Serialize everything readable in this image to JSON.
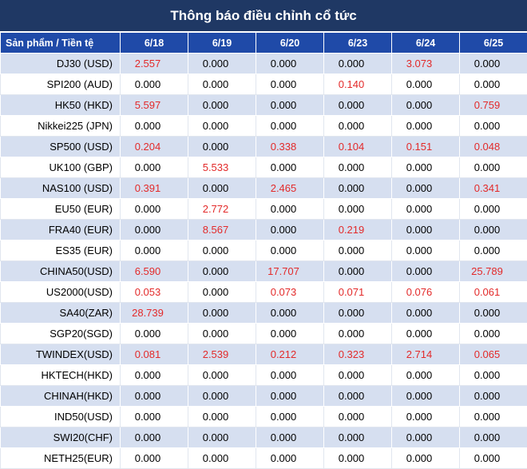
{
  "title": "Thông báo điều chỉnh cổ tức",
  "header": {
    "product_col": "Sản phẩm / Tiền tệ",
    "dates": [
      "6/18",
      "6/19",
      "6/20",
      "6/23",
      "6/24",
      "6/25"
    ]
  },
  "rows": [
    {
      "label": "DJ30 (USD)",
      "values": [
        "2.557",
        "0.000",
        "0.000",
        "0.000",
        "3.073",
        "0.000"
      ]
    },
    {
      "label": "SPI200 (AUD)",
      "values": [
        "0.000",
        "0.000",
        "0.000",
        "0.140",
        "0.000",
        "0.000"
      ]
    },
    {
      "label": "HK50 (HKD)",
      "values": [
        "5.597",
        "0.000",
        "0.000",
        "0.000",
        "0.000",
        "0.759"
      ]
    },
    {
      "label": "Nikkei225 (JPN)",
      "values": [
        "0.000",
        "0.000",
        "0.000",
        "0.000",
        "0.000",
        "0.000"
      ]
    },
    {
      "label": "SP500 (USD)",
      "values": [
        "0.204",
        "0.000",
        "0.338",
        "0.104",
        "0.151",
        "0.048"
      ]
    },
    {
      "label": "UK100 (GBP)",
      "values": [
        "0.000",
        "5.533",
        "0.000",
        "0.000",
        "0.000",
        "0.000"
      ]
    },
    {
      "label": "NAS100 (USD)",
      "values": [
        "0.391",
        "0.000",
        "2.465",
        "0.000",
        "0.000",
        "0.341"
      ]
    },
    {
      "label": "EU50 (EUR)",
      "values": [
        "0.000",
        "2.772",
        "0.000",
        "0.000",
        "0.000",
        "0.000"
      ]
    },
    {
      "label": "FRA40 (EUR)",
      "values": [
        "0.000",
        "8.567",
        "0.000",
        "0.219",
        "0.000",
        "0.000"
      ]
    },
    {
      "label": "ES35 (EUR)",
      "values": [
        "0.000",
        "0.000",
        "0.000",
        "0.000",
        "0.000",
        "0.000"
      ]
    },
    {
      "label": "CHINA50(USD)",
      "values": [
        "6.590",
        "0.000",
        "17.707",
        "0.000",
        "0.000",
        "25.789"
      ]
    },
    {
      "label": "US2000(USD)",
      "values": [
        "0.053",
        "0.000",
        "0.073",
        "0.071",
        "0.076",
        "0.061"
      ]
    },
    {
      "label": "SA40(ZAR)",
      "values": [
        "28.739",
        "0.000",
        "0.000",
        "0.000",
        "0.000",
        "0.000"
      ]
    },
    {
      "label": "SGP20(SGD)",
      "values": [
        "0.000",
        "0.000",
        "0.000",
        "0.000",
        "0.000",
        "0.000"
      ]
    },
    {
      "label": "TWINDEX(USD)",
      "values": [
        "0.081",
        "2.539",
        "0.212",
        "0.323",
        "2.714",
        "0.065"
      ]
    },
    {
      "label": "HKTECH(HKD)",
      "values": [
        "0.000",
        "0.000",
        "0.000",
        "0.000",
        "0.000",
        "0.000"
      ]
    },
    {
      "label": "CHINAH(HKD)",
      "values": [
        "0.000",
        "0.000",
        "0.000",
        "0.000",
        "0.000",
        "0.000"
      ]
    },
    {
      "label": "IND50(USD)",
      "values": [
        "0.000",
        "0.000",
        "0.000",
        "0.000",
        "0.000",
        "0.000"
      ]
    },
    {
      "label": "SWI20(CHF)",
      "values": [
        "0.000",
        "0.000",
        "0.000",
        "0.000",
        "0.000",
        "0.000"
      ]
    },
    {
      "label": "NETH25(EUR)",
      "values": [
        "0.000",
        "0.000",
        "0.000",
        "0.000",
        "0.000",
        "0.000"
      ]
    }
  ],
  "colors": {
    "title_bg": "#1f3864",
    "header_bg": "#1f4aa8",
    "shaded_row": "#d6dff0",
    "positive_value": "#e32a2a",
    "zero_value": "#000000"
  }
}
